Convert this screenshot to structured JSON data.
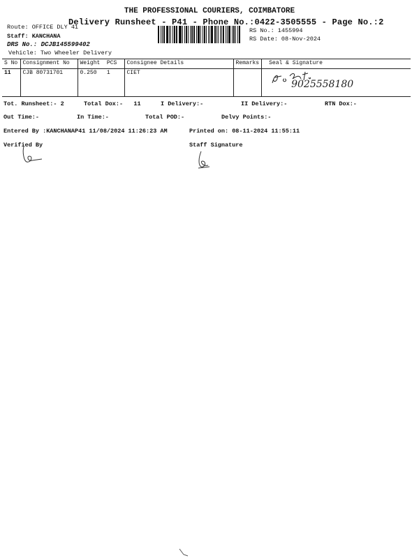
{
  "header": {
    "company": "THE PROFESSIONAL COURIERS, COIMBATORE",
    "subtitle": "Delivery Runsheet - P41 - Phone No.:0422-3505555 - Page No.:2",
    "route": "Route: OFFICE DLY 41",
    "staff": "Staff: KANCHANA",
    "drs": "DRS No.: DCJB145599402",
    "vehicle": "Vehicle: Two Wheeler Delivery",
    "rs_no": "RS No.: 1455994",
    "rs_date": "RS Date: 08-Nov-2024"
  },
  "table": {
    "columns": [
      "S No",
      "Consignment No",
      "Weight  PCS",
      "Consignee Details",
      "Remarks",
      "Seal & Signature"
    ],
    "rows": [
      {
        "sno": "11",
        "consignment": "CJB 80731701",
        "weight": "0.250",
        "pcs": "1",
        "consignee": "CIET",
        "remarks": "",
        "signature": "9025558180"
      }
    ]
  },
  "totals": {
    "tot_runsheet": "Tot. Runsheet:- 2",
    "total_dox": "Total Dox:-   11",
    "i_delivery": "I Delivery:-",
    "ii_delivery": "II Delivery:-",
    "rtn_dox": "RTN Dox:-",
    "out_time": "Out Time:-",
    "in_time": "In Time:-",
    "total_pod": "Total POD:-",
    "delvy_points": "Delvy Points:-"
  },
  "footer": {
    "entered_by": "Entered By :KANCHANAP41 11/08/2024 11:26:23 AM",
    "printed_on": "Printed on: 08-11-2024 11:55:11",
    "verified_by": "Verified By",
    "staff_signature": "Staff Signature"
  }
}
